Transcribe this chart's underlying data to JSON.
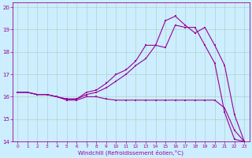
{
  "bg_color": "#cceeff",
  "line_color": "#990099",
  "grid_color": "#aaccbb",
  "xlim": [
    -0.5,
    23.5
  ],
  "ylim": [
    14,
    20.2
  ],
  "xticks": [
    0,
    1,
    2,
    3,
    4,
    5,
    6,
    7,
    8,
    9,
    10,
    11,
    12,
    13,
    14,
    15,
    16,
    17,
    18,
    19,
    20,
    21,
    22,
    23
  ],
  "yticks": [
    14,
    15,
    16,
    17,
    18,
    19,
    20
  ],
  "xlabel": "Windchill (Refroidissement éolien,°C)",
  "line1_x": [
    0,
    1,
    2,
    3,
    4,
    5,
    6,
    7,
    8,
    9,
    10,
    11,
    12,
    13,
    14,
    15,
    16,
    17,
    18,
    19,
    20,
    21,
    22,
    23
  ],
  "line1_y": [
    16.2,
    16.2,
    16.1,
    16.1,
    16.0,
    15.9,
    15.9,
    16.1,
    16.2,
    16.4,
    16.7,
    17.0,
    17.4,
    17.7,
    18.3,
    18.2,
    19.2,
    19.1,
    19.1,
    18.3,
    17.5,
    15.3,
    14.1,
    14.0
  ],
  "line2_x": [
    0,
    1,
    2,
    3,
    4,
    5,
    6,
    7,
    8,
    9,
    10,
    11,
    12,
    13,
    14,
    15,
    16,
    17,
    18,
    19,
    20,
    21,
    22,
    23
  ],
  "line2_y": [
    16.2,
    16.2,
    16.1,
    16.1,
    16.0,
    15.9,
    15.9,
    16.2,
    16.3,
    16.6,
    17.0,
    17.2,
    17.6,
    18.3,
    18.3,
    19.4,
    19.6,
    19.2,
    18.85,
    19.1,
    18.3,
    17.4,
    15.2,
    14.0
  ],
  "line3_x": [
    0,
    1,
    2,
    3,
    4,
    5,
    6,
    7,
    8,
    9,
    10,
    11,
    12,
    13,
    14,
    15,
    16,
    17,
    18,
    19,
    20,
    21,
    22,
    23
  ],
  "line3_y": [
    16.2,
    16.2,
    16.1,
    16.1,
    16.0,
    15.85,
    15.85,
    16.0,
    16.0,
    15.9,
    15.85,
    15.85,
    15.85,
    15.85,
    15.85,
    15.85,
    15.85,
    15.85,
    15.85,
    15.85,
    15.85,
    15.5,
    14.5,
    14.0
  ]
}
